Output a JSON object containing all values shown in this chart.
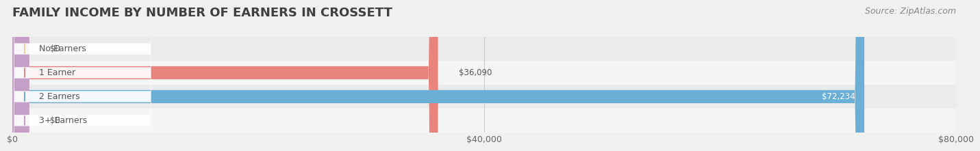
{
  "title": "FAMILY INCOME BY NUMBER OF EARNERS IN CROSSETT",
  "source": "Source: ZipAtlas.com",
  "categories": [
    "No Earners",
    "1 Earner",
    "2 Earners",
    "3+ Earners"
  ],
  "values": [
    0,
    36090,
    72234,
    0
  ],
  "max_value": 80000,
  "bar_colors": [
    "#f5c99a",
    "#e8837e",
    "#6baed6",
    "#c4a0c8"
  ],
  "bar_height": 0.55,
  "background_color": "#f0f0f0",
  "row_bg_colors": [
    "#f9f9f9",
    "#f0f0f0"
  ],
  "label_bg_color": "#ffffff",
  "label_text_color": "#555555",
  "value_color_inside": "#ffffff",
  "value_color_outside": "#555555",
  "x_ticks": [
    0,
    40000,
    80000
  ],
  "x_tick_labels": [
    "$0",
    "$40,000",
    "$80,000"
  ],
  "title_color": "#404040",
  "source_color": "#888888",
  "title_fontsize": 13,
  "source_fontsize": 9,
  "tick_fontsize": 9,
  "label_fontsize": 9,
  "value_fontsize": 8.5
}
